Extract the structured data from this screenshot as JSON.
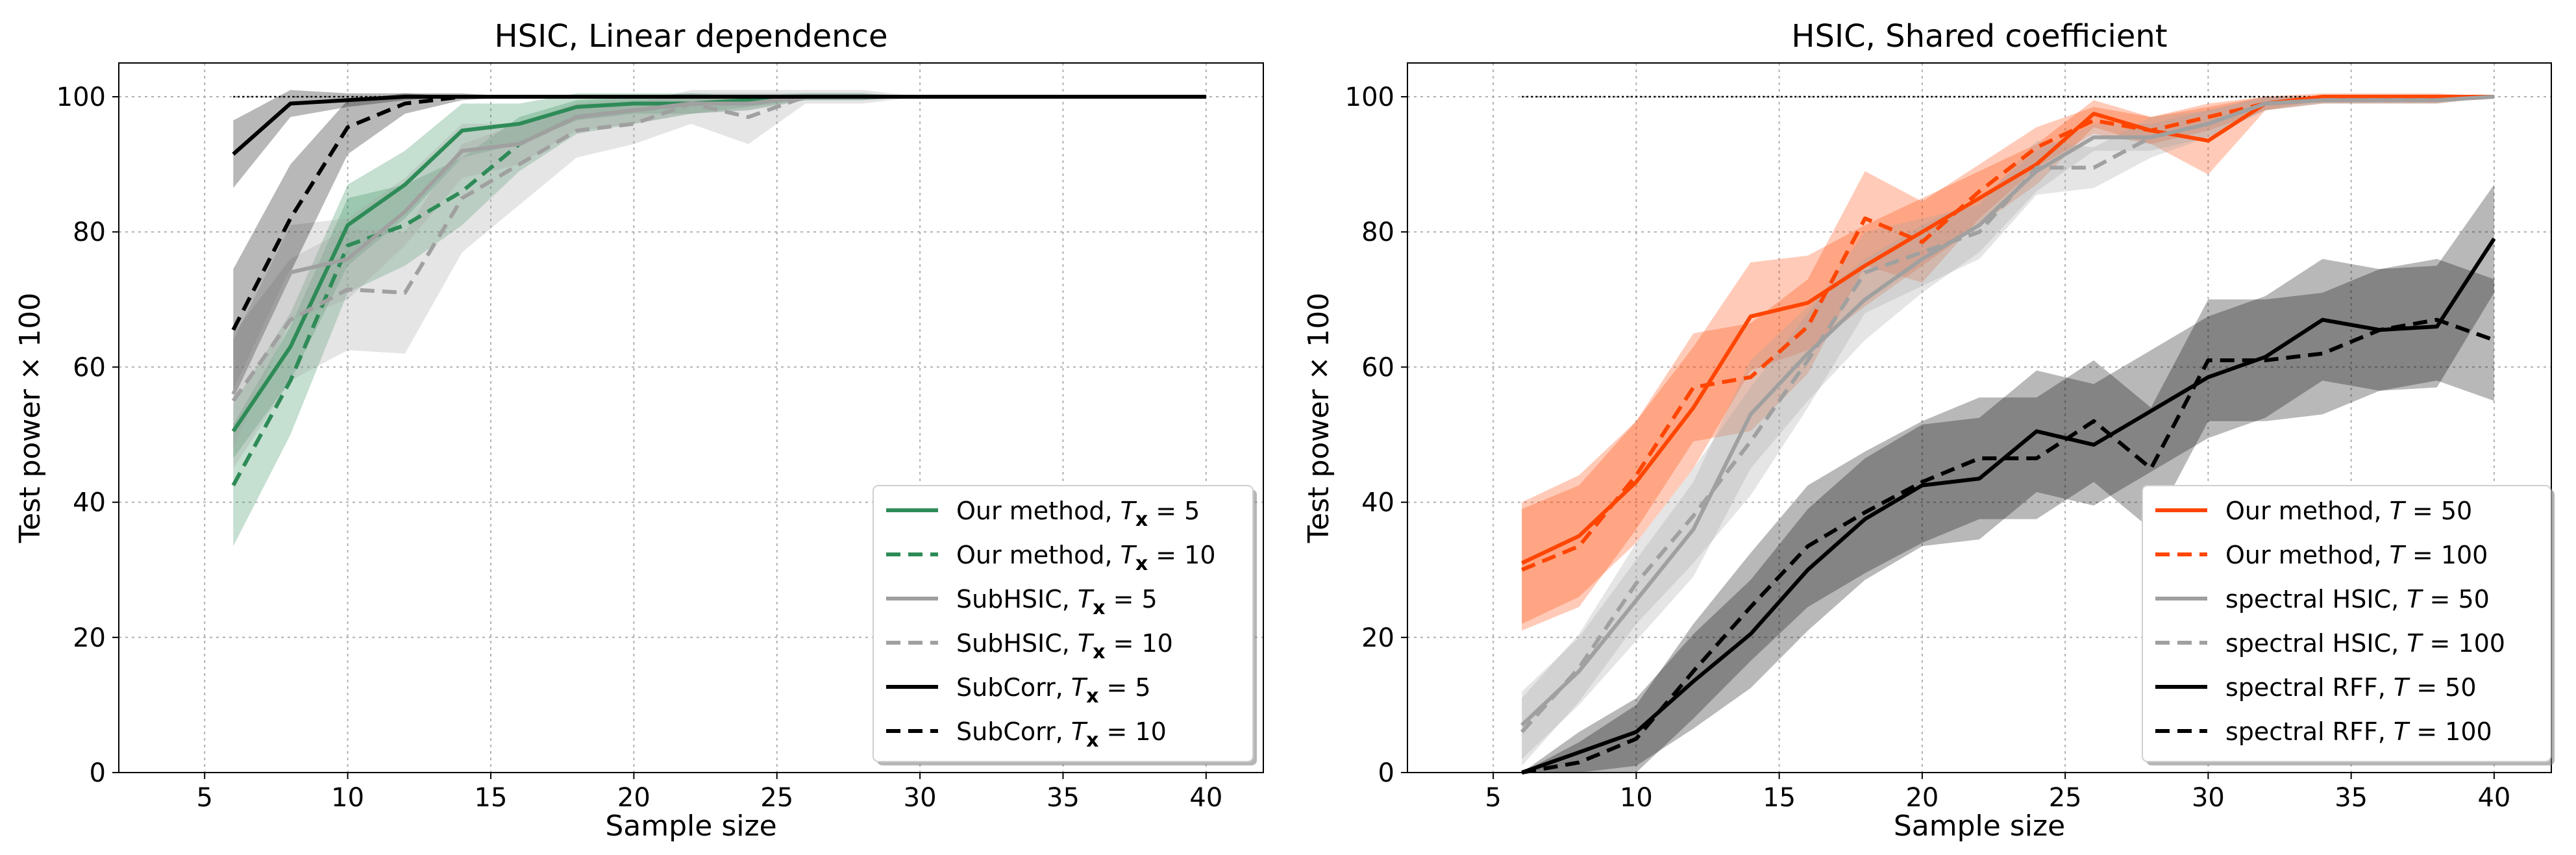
{
  "chart_data": [
    {
      "type": "line",
      "title": "HSIC, Linear dependence",
      "xlabel": "Sample size",
      "ylabel": "Test power × 100",
      "xlim": [
        2,
        42
      ],
      "ylim": [
        0,
        105
      ],
      "xticks": [
        5,
        10,
        15,
        20,
        25,
        30,
        35,
        40
      ],
      "yticks": [
        0,
        20,
        40,
        60,
        80,
        100
      ],
      "grid": true,
      "legend_position": "bottom-right",
      "reference_line": {
        "y": 100,
        "x": [
          6,
          40
        ],
        "style": "dotted"
      },
      "x": [
        6,
        8,
        10,
        12,
        14,
        16,
        18,
        20,
        22,
        24,
        26,
        28,
        30,
        32,
        34,
        36,
        38,
        40
      ],
      "series": [
        {
          "name": "Our method, T_x = 5",
          "legend_prefix": "Our method, ",
          "legend_sub": "x",
          "legend_value": " = 5",
          "color": "#2e8b57",
          "dash": "solid",
          "values": [
            50.5,
            63,
            81,
            87,
            95,
            96,
            98.5,
            99,
            99,
            99.5,
            100,
            100,
            100,
            100,
            100,
            100,
            100,
            100
          ],
          "band": [
            4,
            5,
            6,
            5,
            4,
            3,
            2,
            1.5,
            1.5,
            1,
            0.5,
            0.5,
            0,
            0,
            0,
            0,
            0,
            0
          ]
        },
        {
          "name": "Our method, T_x = 10",
          "legend_prefix": "Our method, ",
          "legend_sub": "x",
          "legend_value": " = 10",
          "color": "#2e8b57",
          "dash": "dashed",
          "values": [
            42.5,
            58,
            78,
            81,
            86,
            93,
            97,
            98,
            99,
            99,
            100,
            100,
            100,
            100,
            100,
            100,
            100,
            100
          ],
          "band": [
            9,
            8,
            7,
            6,
            5,
            4,
            2.5,
            2,
            1.5,
            1,
            0.5,
            0.5,
            0,
            0,
            0,
            0,
            0,
            0
          ]
        },
        {
          "name": "SubHSIC, T_x = 5",
          "legend_prefix": "SubHSIC, ",
          "legend_sub": "x",
          "legend_value": " = 5",
          "color": "#a0a0a0",
          "dash": "solid",
          "values": [
            56,
            74,
            76,
            83,
            92,
            93,
            97,
            98,
            99,
            99,
            100,
            100,
            100,
            100,
            100,
            100,
            100,
            100
          ],
          "band": [
            8,
            7,
            6,
            5,
            4,
            3,
            2,
            2,
            1.5,
            1,
            0.5,
            0.5,
            0,
            0,
            0,
            0,
            0,
            0
          ]
        },
        {
          "name": "SubHSIC, T_x = 10",
          "legend_prefix": "SubHSIC, ",
          "legend_sub": "x",
          "legend_value": " = 10",
          "color": "#a0a0a0",
          "dash": "dashed",
          "values": [
            55,
            67,
            71.5,
            71,
            85,
            90,
            95,
            96,
            99,
            97,
            100,
            100,
            100,
            100,
            100,
            100,
            100,
            100
          ],
          "band": [
            10,
            9,
            9,
            9,
            8,
            6,
            4,
            3,
            3,
            4,
            1,
            1,
            0,
            0,
            0,
            0,
            0,
            0
          ]
        },
        {
          "name": "SubCorr, T_x = 5",
          "legend_prefix": "SubCorr, ",
          "legend_sub": "x",
          "legend_value": " = 5",
          "color": "#000000",
          "dash": "solid",
          "values": [
            91.5,
            99,
            99.5,
            100,
            100,
            100,
            100,
            100,
            100,
            100,
            100,
            100,
            100,
            100,
            100,
            100,
            100,
            100
          ],
          "band": [
            5,
            2,
            1,
            0.5,
            0,
            0,
            0,
            0,
            0,
            0,
            0,
            0,
            0,
            0,
            0,
            0,
            0,
            0
          ]
        },
        {
          "name": "SubCorr, T_x = 10",
          "legend_prefix": "SubCorr, ",
          "legend_sub": "x",
          "legend_value": " = 10",
          "color": "#000000",
          "dash": "dashed",
          "values": [
            65.5,
            82,
            95.5,
            99,
            100,
            100,
            100,
            100,
            100,
            100,
            100,
            100,
            100,
            100,
            100,
            100,
            100,
            100
          ],
          "band": [
            9,
            8,
            4,
            1.5,
            0.5,
            0,
            0,
            0,
            0,
            0,
            0,
            0,
            0,
            0,
            0,
            0,
            0,
            0
          ]
        }
      ]
    },
    {
      "type": "line",
      "title": "HSIC, Shared coefficient",
      "xlabel": "Sample size",
      "ylabel": "Test power × 100",
      "xlim": [
        2,
        42
      ],
      "ylim": [
        0,
        105
      ],
      "xticks": [
        5,
        10,
        15,
        20,
        25,
        30,
        35,
        40
      ],
      "yticks": [
        0,
        20,
        40,
        60,
        80,
        100
      ],
      "grid": true,
      "legend_position": "bottom-right",
      "reference_line": {
        "y": 100,
        "x": [
          6,
          40
        ],
        "style": "dotted"
      },
      "x": [
        6,
        8,
        10,
        12,
        14,
        16,
        18,
        20,
        22,
        24,
        26,
        28,
        30,
        32,
        34,
        36,
        38,
        40
      ],
      "series": [
        {
          "name": "Our method, T = 50",
          "legend_prefix": "Our method, ",
          "legend_sub": "",
          "legend_value": " = 50",
          "color": "#ff4500",
          "dash": "solid",
          "values": [
            31,
            35,
            43,
            54,
            67.5,
            69.5,
            75,
            80,
            85,
            90,
            97.5,
            95,
            93.5,
            99,
            100,
            100,
            100,
            100
          ],
          "band": [
            9,
            9,
            9,
            9,
            8,
            7,
            6,
            5,
            4,
            3,
            2,
            2,
            5,
            1,
            0.5,
            0.5,
            0.5,
            0
          ]
        },
        {
          "name": "Our method, T = 100",
          "legend_prefix": "Our method, ",
          "legend_sub": "",
          "legend_value": " = 100",
          "color": "#ff4500",
          "dash": "dashed",
          "values": [
            30,
            33.5,
            44,
            57,
            58.5,
            66,
            82,
            78.5,
            86,
            92.5,
            96.5,
            95,
            97,
            99,
            99.5,
            99.5,
            99.5,
            100
          ],
          "band": [
            9,
            9,
            8,
            8,
            8,
            7,
            7,
            6,
            4,
            3,
            2,
            2,
            2,
            1,
            0.5,
            0.5,
            0.5,
            0
          ]
        },
        {
          "name": "spectral HSIC, T = 50",
          "legend_prefix": "spectral HSIC, ",
          "legend_sub": "",
          "legend_value": " = 50",
          "color": "#a0a0a0",
          "dash": "solid",
          "values": [
            7,
            15,
            25.5,
            36,
            53,
            62,
            70,
            76,
            81,
            89,
            94,
            94,
            96,
            99,
            99.5,
            99.5,
            99.5,
            100
          ],
          "band": [
            5,
            5,
            6,
            7,
            8,
            7,
            6,
            5,
            4,
            3,
            2,
            2,
            2,
            1,
            0.5,
            0.5,
            0.5,
            0
          ]
        },
        {
          "name": "spectral HSIC, T = 100",
          "legend_prefix": "spectral HSIC, ",
          "legend_sub": "",
          "legend_value": " = 100",
          "color": "#a0a0a0",
          "dash": "dashed",
          "values": [
            6,
            15.5,
            28,
            38,
            49,
            61,
            74,
            77,
            80,
            89.5,
            89.5,
            94,
            96,
            99,
            99.5,
            99.5,
            99.5,
            100
          ],
          "band": [
            5,
            5,
            6,
            7,
            8,
            7,
            6,
            5,
            4,
            4,
            3,
            3,
            2,
            1,
            0.5,
            0.5,
            0.5,
            0
          ]
        },
        {
          "name": "spectral RFF, T = 50",
          "legend_prefix": "spectral RFF, ",
          "legend_sub": "",
          "legend_value": " = 50",
          "color": "#000000",
          "dash": "solid",
          "values": [
            0,
            3,
            6,
            13.5,
            20.5,
            30,
            37.5,
            42.5,
            43.5,
            50.5,
            48.5,
            53.5,
            58.5,
            61.5,
            67,
            65.5,
            66,
            79
          ],
          "band": [
            0,
            3,
            5,
            7,
            8,
            9,
            9,
            9,
            9,
            9,
            9,
            9,
            9,
            9,
            9,
            9,
            9,
            8
          ]
        },
        {
          "name": "spectral RFF, T = 100",
          "legend_prefix": "spectral RFF, ",
          "legend_sub": "",
          "legend_value": " = 100",
          "color": "#000000",
          "dash": "dashed",
          "values": [
            0,
            1.5,
            5,
            15,
            24.5,
            33.5,
            38.5,
            43,
            46.5,
            46.5,
            52,
            45,
            61,
            61,
            62,
            65.5,
            67,
            64
          ],
          "band": [
            0,
            3,
            5,
            7,
            8,
            9,
            9,
            9,
            9,
            9,
            9,
            9,
            9,
            9,
            9,
            9,
            9,
            9
          ]
        }
      ]
    }
  ]
}
